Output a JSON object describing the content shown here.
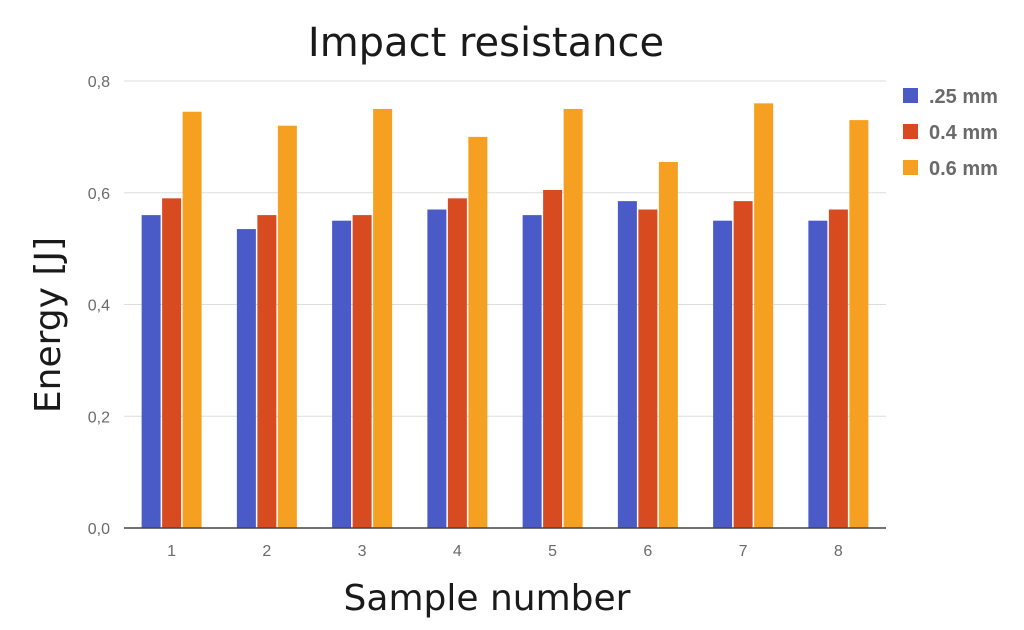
{
  "chart_data": {
    "type": "bar",
    "title": "Impact resistance",
    "xlabel": "Sample number",
    "ylabel": "Energy [J]",
    "categories": [
      "1",
      "2",
      "3",
      "4",
      "5",
      "6",
      "7",
      "8"
    ],
    "ylim": [
      0,
      0.8
    ],
    "yticks": [
      0,
      0.2,
      0.4,
      0.6,
      0.8
    ],
    "ytick_labels": [
      "0,0",
      "0,2",
      "0,4",
      "0,6",
      "0,8"
    ],
    "grid": true,
    "legend_position": "right",
    "series": [
      {
        "name": ".25 mm",
        "color": "#4a5bc8",
        "values": [
          0.56,
          0.535,
          0.55,
          0.57,
          0.56,
          0.585,
          0.55,
          0.55
        ]
      },
      {
        "name": "0.4 mm",
        "color": "#d84a20",
        "values": [
          0.59,
          0.56,
          0.56,
          0.59,
          0.605,
          0.57,
          0.585,
          0.57
        ]
      },
      {
        "name": "0.6 mm",
        "color": "#f5a020",
        "values": [
          0.745,
          0.72,
          0.75,
          0.7,
          0.75,
          0.655,
          0.76,
          0.73
        ]
      }
    ]
  }
}
